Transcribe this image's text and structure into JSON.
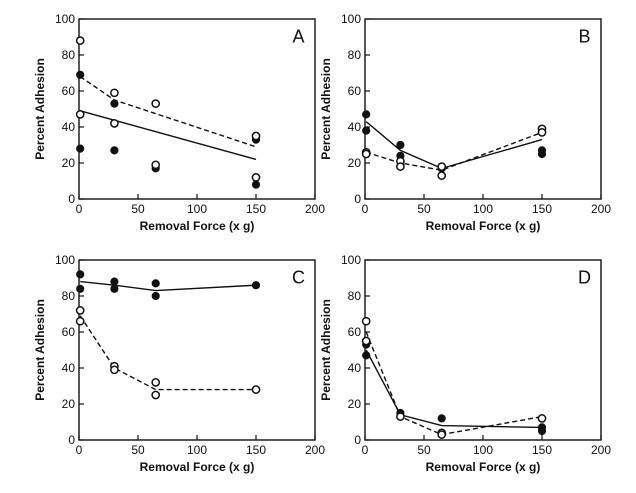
{
  "chart_data": [
    {
      "type": "scatter",
      "panel_label": "A",
      "xlabel": "Removal Force (x g)",
      "ylabel": "Percent Adhesion",
      "xlim": [
        0,
        200
      ],
      "ylim": [
        0,
        100
      ],
      "x_ticks": [
        "0",
        "50",
        "100",
        "150",
        "200"
      ],
      "y_ticks": [
        "0",
        "20",
        "40",
        "60",
        "80",
        "100"
      ],
      "series": [
        {
          "marker": "filled",
          "points": [
            [
              1,
              69
            ],
            [
              1,
              28
            ],
            [
              30,
              53
            ],
            [
              30,
              27
            ],
            [
              65,
              17
            ],
            [
              150,
              33
            ],
            [
              150,
              8
            ]
          ],
          "line": {
            "style": "dashed",
            "points": [
              [
                1,
                68
              ],
              [
                30,
                55
              ],
              [
                150,
                29
              ]
            ]
          }
        },
        {
          "marker": "open",
          "points": [
            [
              1,
              88
            ],
            [
              1,
              47
            ],
            [
              30,
              59
            ],
            [
              30,
              42
            ],
            [
              65,
              53
            ],
            [
              65,
              19
            ],
            [
              150,
              35
            ],
            [
              150,
              12
            ]
          ],
          "line": {
            "style": "solid",
            "points": [
              [
                1,
                49
              ],
              [
                150,
                22
              ]
            ]
          }
        }
      ]
    },
    {
      "type": "line",
      "panel_label": "B",
      "xlabel": "Removal Force (x g)",
      "ylabel": "Percent Adhesion",
      "xlim": [
        0,
        200
      ],
      "ylim": [
        0,
        100
      ],
      "x_ticks": [
        "0",
        "50",
        "100",
        "150",
        "200"
      ],
      "y_ticks": [
        "0",
        "20",
        "40",
        "60",
        "80",
        "100"
      ],
      "series": [
        {
          "marker": "filled",
          "points": [
            [
              1,
              47
            ],
            [
              1,
              38
            ],
            [
              30,
              30
            ],
            [
              30,
              24
            ],
            [
              65,
              17
            ],
            [
              150,
              27
            ],
            [
              150,
              25
            ]
          ],
          "line": {
            "style": "solid",
            "points": [
              [
                1,
                43
              ],
              [
                30,
                27
              ],
              [
                65,
                17
              ],
              [
                150,
                33
              ]
            ]
          }
        },
        {
          "marker": "open",
          "points": [
            [
              1,
              26
            ],
            [
              1,
              25
            ],
            [
              30,
              21
            ],
            [
              30,
              18
            ],
            [
              65,
              18
            ],
            [
              65,
              13
            ],
            [
              150,
              39
            ],
            [
              150,
              37
            ]
          ],
          "line": {
            "style": "dashed",
            "points": [
              [
                1,
                26
              ],
              [
                30,
                20
              ],
              [
                65,
                16
              ],
              [
                150,
                37
              ]
            ]
          }
        }
      ]
    },
    {
      "type": "line",
      "panel_label": "C",
      "xlabel": "Removal Force (x g)",
      "ylabel": "Percent Adhesion",
      "xlim": [
        0,
        200
      ],
      "ylim": [
        0,
        100
      ],
      "x_ticks": [
        "0",
        "50",
        "100",
        "150",
        "200"
      ],
      "y_ticks": [
        "0",
        "20",
        "40",
        "60",
        "80",
        "100"
      ],
      "series": [
        {
          "marker": "filled",
          "points": [
            [
              1,
              92
            ],
            [
              1,
              84
            ],
            [
              30,
              88
            ],
            [
              30,
              84
            ],
            [
              65,
              87
            ],
            [
              65,
              80
            ],
            [
              150,
              86
            ]
          ],
          "line": {
            "style": "solid",
            "points": [
              [
                1,
                88
              ],
              [
                30,
                86
              ],
              [
                65,
                83
              ],
              [
                150,
                86
              ]
            ]
          }
        },
        {
          "marker": "open",
          "points": [
            [
              1,
              72
            ],
            [
              1,
              66
            ],
            [
              30,
              41
            ],
            [
              30,
              39
            ],
            [
              65,
              32
            ],
            [
              65,
              25
            ],
            [
              150,
              28
            ]
          ],
          "line": {
            "style": "dashed",
            "points": [
              [
                1,
                69
              ],
              [
                30,
                40
              ],
              [
                65,
                28
              ],
              [
                150,
                28
              ]
            ]
          }
        }
      ]
    },
    {
      "type": "line",
      "panel_label": "D",
      "xlabel": "Removal Force (x g)",
      "ylabel": "Percent Adhesion",
      "xlim": [
        0,
        200
      ],
      "ylim": [
        0,
        100
      ],
      "x_ticks": [
        "0",
        "50",
        "100",
        "150",
        "200"
      ],
      "y_ticks": [
        "0",
        "20",
        "40",
        "60",
        "80",
        "100"
      ],
      "series": [
        {
          "marker": "filled",
          "points": [
            [
              1,
              47
            ],
            [
              1,
              53
            ],
            [
              30,
              15
            ],
            [
              65,
              12
            ],
            [
              150,
              7
            ],
            [
              150,
              5
            ]
          ],
          "line": {
            "style": "solid",
            "points": [
              [
                1,
                50
              ],
              [
                30,
                14
              ],
              [
                65,
                8
              ],
              [
                150,
                7
              ]
            ]
          }
        },
        {
          "marker": "open",
          "points": [
            [
              1,
              66
            ],
            [
              1,
              55
            ],
            [
              30,
              13
            ],
            [
              65,
              4
            ],
            [
              65,
              3
            ],
            [
              150,
              12
            ]
          ],
          "line": {
            "style": "dashed",
            "points": [
              [
                1,
                60
              ],
              [
                30,
                13
              ],
              [
                65,
                3
              ],
              [
                150,
                13
              ]
            ]
          }
        }
      ]
    }
  ]
}
